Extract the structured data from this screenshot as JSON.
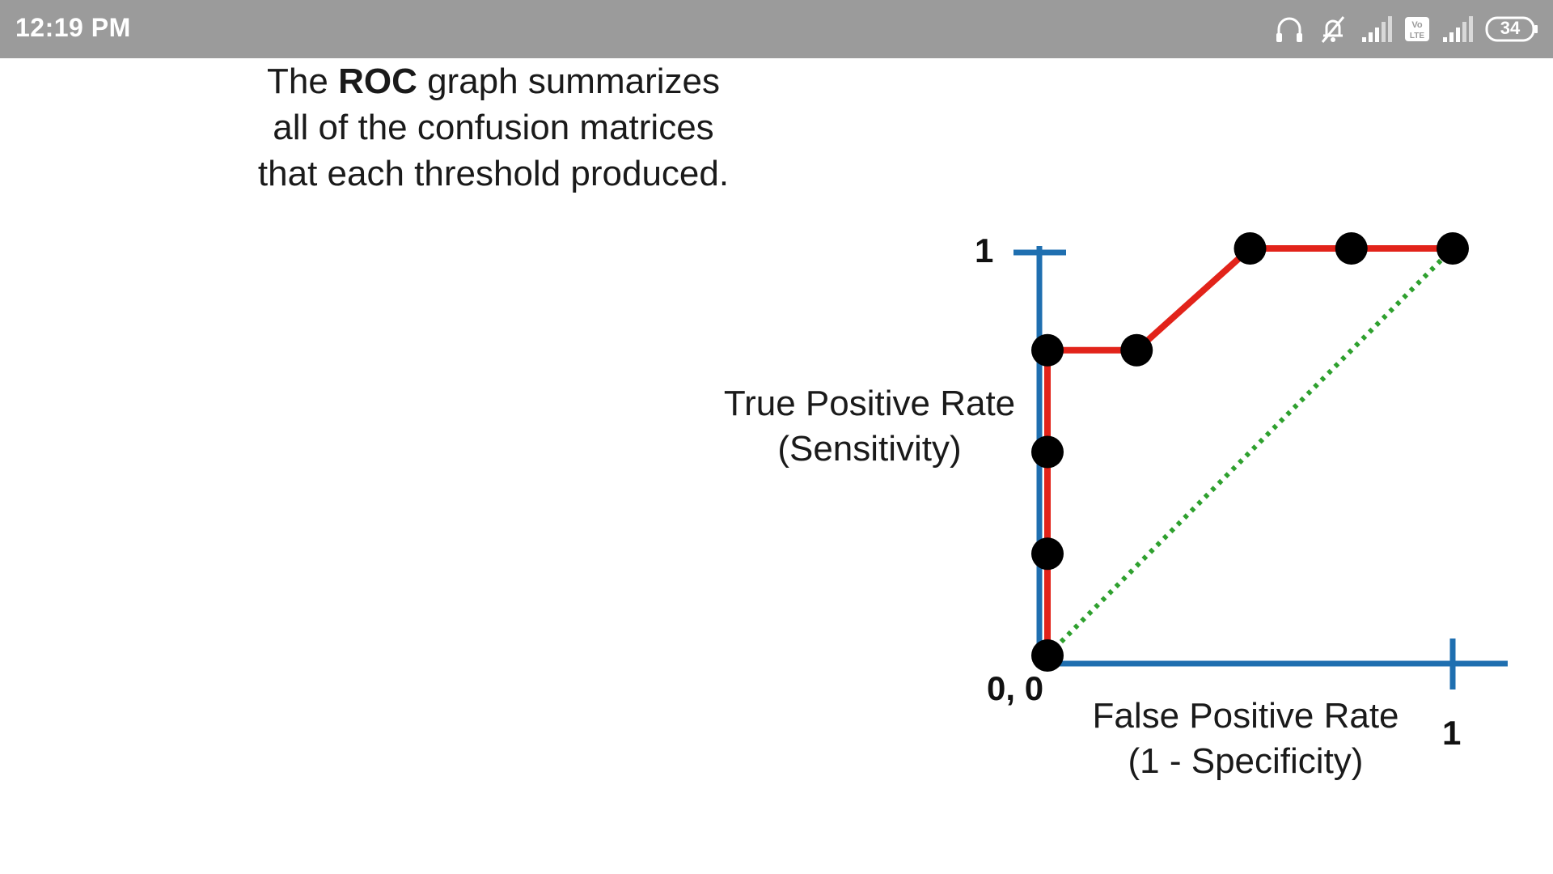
{
  "status_bar": {
    "time": "12:19 PM",
    "battery": "34",
    "icons": [
      "headphones-icon",
      "bell-muted-icon",
      "signal-icon",
      "volte-icon",
      "signal-icon",
      "battery-icon"
    ]
  },
  "slide": {
    "caption": {
      "line1_before": "The ",
      "line1_bold": "ROC",
      "line1_after": " graph summarizes",
      "line2": "all of the confusion matrices",
      "line3": "that each threshold produced."
    }
  },
  "colors": {
    "axis": "#1f6fb0",
    "roc_line": "#e2231a",
    "diagonal": "#2ea02e",
    "points": "#000000",
    "status_bar": "#9b9b9b"
  },
  "chart_data": {
    "type": "line",
    "xlabel": [
      "False Positive Rate",
      "(1 - Specificity)"
    ],
    "ylabel": [
      "True Positive Rate",
      "(Sensitivity)"
    ],
    "xlim": [
      0,
      1
    ],
    "ylim": [
      0,
      1
    ],
    "tick_labels": {
      "origin": "0, 0",
      "x_max": "1",
      "y_max": "1"
    },
    "grid": false,
    "legend": "none",
    "series": [
      {
        "style": "solid",
        "color": "#e2231a",
        "markers": true,
        "x": [
          0,
          0,
          0,
          0,
          0.22,
          0.5,
          0.75,
          1
        ],
        "y": [
          0,
          0.25,
          0.5,
          0.75,
          0.75,
          1,
          1,
          1
        ]
      },
      {
        "style": "dotted",
        "color": "#2ea02e",
        "markers": false,
        "x": [
          0,
          1
        ],
        "y": [
          0,
          1
        ]
      }
    ]
  }
}
